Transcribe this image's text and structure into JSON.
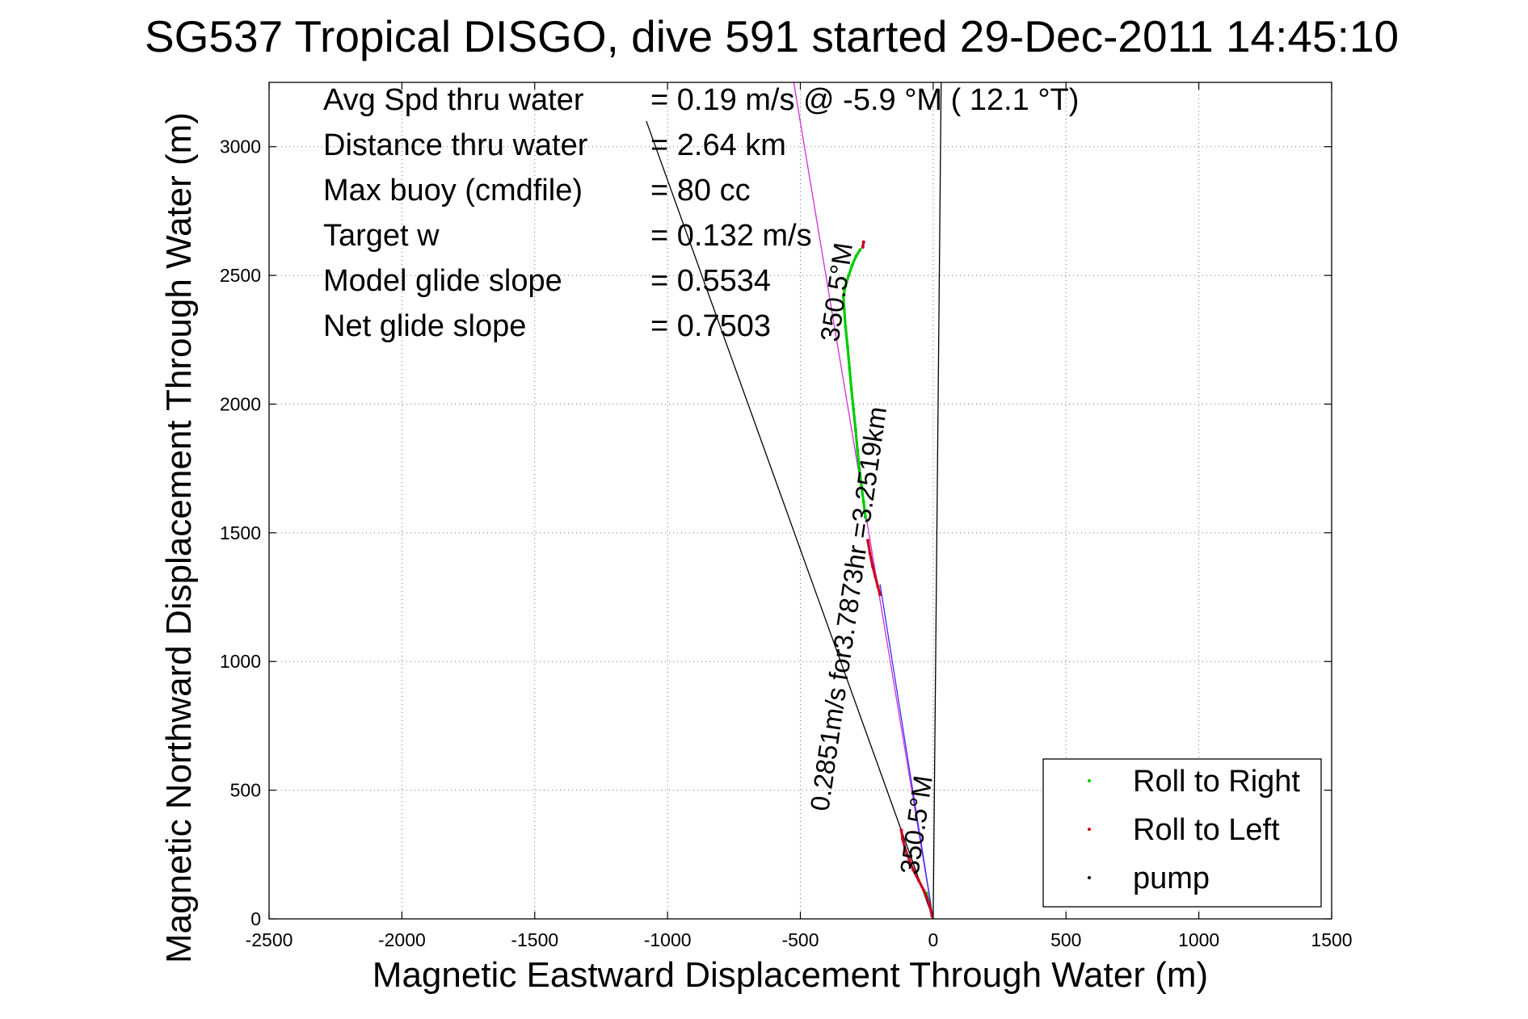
{
  "chart_data": {
    "type": "scatter",
    "title": "SG537 Tropical DISGO, dive 591 started 29-Dec-2011 14:45:10",
    "xlabel": "Magnetic Eastward Displacement Through Water (m)",
    "ylabel": "Magnetic Northward Displacement Through Water (m)",
    "xlim": [
      -2500,
      1500
    ],
    "ylim": [
      0,
      3250
    ],
    "xticks": [
      -2500,
      -2000,
      -1500,
      -1000,
      -500,
      0,
      500,
      1000,
      1500
    ],
    "yticks": [
      0,
      500,
      1000,
      1500,
      2000,
      2500,
      3000
    ],
    "xtick_labels": [
      "-2500",
      "-2000",
      "-1500",
      "-1000",
      "-500",
      "0",
      "500",
      "1000",
      "1500"
    ],
    "ytick_labels": [
      "0",
      "500",
      "1000",
      "1500",
      "2000",
      "2500",
      "3000"
    ],
    "grid": true,
    "legend_position": "bottom-right",
    "stats": [
      {
        "label": "Avg Spd thru water",
        "value": "=  0.19 m/s @  -5.9 °M ( 12.1 °T)"
      },
      {
        "label": "Distance thru water",
        "value": "=  2.64 km"
      },
      {
        "label": "Max buoy (cmdfile)",
        "value": "= 80 cc"
      },
      {
        "label": "Target w",
        "value": "= 0.132 m/s"
      },
      {
        "label": "Model glide slope",
        "value": "= 0.5534"
      },
      {
        "label": "Net glide slope",
        "value": "= 0.7503"
      }
    ],
    "annotations": [
      {
        "text": "0.2851m/s for3.7873hr =3.2519km",
        "x": -285,
        "y": 1200,
        "angle_deg": -81.8
      },
      {
        "text": "350.5°M",
        "x": -30,
        "y": 360,
        "angle_deg": -81.8
      },
      {
        "text": "350.5°M",
        "x": -330,
        "y": 2430,
        "angle_deg": -81.8
      }
    ],
    "reference_lines": [
      {
        "name": "heading-line",
        "color": "#000000",
        "points": [
          [
            0,
            0
          ],
          [
            -1080,
            3100
          ]
        ]
      },
      {
        "name": "net-displacement-line",
        "color": "#d62bd6",
        "points": [
          [
            0,
            0
          ],
          [
            -525,
            3250
          ]
        ]
      },
      {
        "name": "current-line",
        "color": "#000000",
        "points": [
          [
            0,
            0
          ],
          [
            30,
            3250
          ]
        ]
      },
      {
        "name": "dive-track-line",
        "color": "#3030ff",
        "points": [
          [
            0,
            0
          ],
          [
            -200,
            1300
          ]
        ]
      }
    ],
    "series": [
      {
        "name": "Roll to Right",
        "color": "#00cc00",
        "points": [
          [
            -10,
            40
          ],
          [
            -25,
            100
          ],
          [
            -255,
            1560
          ],
          [
            -262,
            1620
          ],
          [
            -270,
            1680
          ],
          [
            -278,
            1750
          ],
          [
            -285,
            1820
          ],
          [
            -292,
            1900
          ],
          [
            -300,
            1980
          ],
          [
            -308,
            2060
          ],
          [
            -315,
            2140
          ],
          [
            -322,
            2220
          ],
          [
            -330,
            2300
          ],
          [
            -335,
            2370
          ],
          [
            -338,
            2420
          ],
          [
            -330,
            2460
          ],
          [
            -318,
            2500
          ],
          [
            -305,
            2540
          ],
          [
            -290,
            2575
          ],
          [
            -275,
            2600
          ]
        ]
      },
      {
        "name": "Roll to Left",
        "color": "#cc0022",
        "points": [
          [
            -4,
            10
          ],
          [
            -15,
            60
          ],
          [
            -35,
            110
          ],
          [
            -55,
            150
          ],
          [
            -75,
            190
          ],
          [
            -90,
            230
          ],
          [
            -105,
            270
          ],
          [
            -115,
            310
          ],
          [
            -120,
            345
          ],
          [
            -200,
            1260
          ],
          [
            -208,
            1290
          ],
          [
            -218,
            1330
          ],
          [
            -228,
            1370
          ],
          [
            -238,
            1420
          ],
          [
            -246,
            1470
          ],
          [
            -265,
            2610
          ],
          [
            -262,
            2630
          ]
        ]
      },
      {
        "name": "pump",
        "color": "#000000",
        "points": []
      }
    ]
  }
}
